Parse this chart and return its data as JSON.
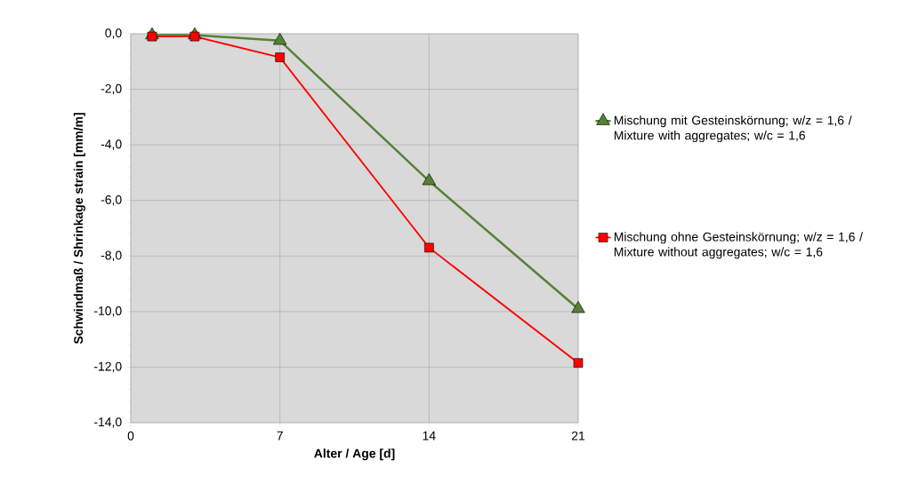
{
  "chart_data": {
    "type": "line",
    "xlabel": "Alter / Age [d]",
    "ylabel": "Schwindmaß / Shrinkage strain [mm/m]",
    "x": [
      1,
      3,
      7,
      14,
      21
    ],
    "series": [
      {
        "name": "Mischung mit Gesteinskörnung; w/z = 1,6 / Mixture with aggregates; w/c = 1,6",
        "color": "#548235",
        "marker": "triangle",
        "values": [
          -0.05,
          -0.05,
          -0.25,
          -5.3,
          -9.9
        ]
      },
      {
        "name": "Mischung ohne Gesteinskörnung; w/z = 1,6 / Mixture without aggregates; w/c = 1,6",
        "color": "#ff0000",
        "marker": "square",
        "values": [
          -0.1,
          -0.1,
          -0.85,
          -7.7,
          -11.85
        ]
      }
    ],
    "xlim": [
      0,
      21
    ],
    "xticks": [
      0,
      7,
      14,
      21
    ],
    "ylim": [
      -14,
      0
    ],
    "yticks": [
      {
        "value": -14,
        "label": "-14,0"
      },
      {
        "value": -12,
        "label": "-12,0"
      },
      {
        "value": -10,
        "label": "-10,0"
      },
      {
        "value": -8,
        "label": "-8,0"
      },
      {
        "value": -6,
        "label": "-6,0"
      },
      {
        "value": -4,
        "label": "-4,0"
      },
      {
        "value": -2,
        "label": "-2,0"
      },
      {
        "value": 0,
        "label": "0,0"
      }
    ],
    "grid": true,
    "legend": "right",
    "line_style": "solid"
  }
}
